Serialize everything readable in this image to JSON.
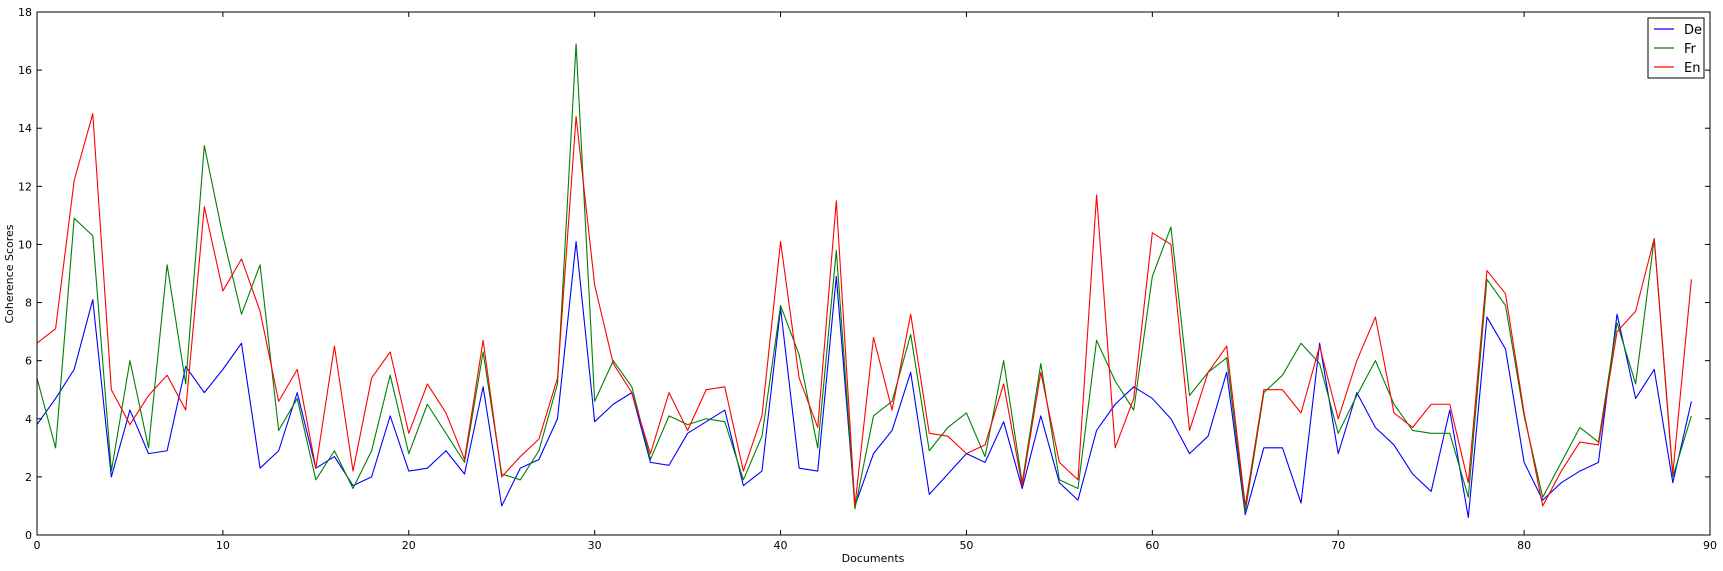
{
  "chart_data": {
    "type": "line",
    "title": "",
    "xlabel": "Documents",
    "ylabel": "Coherence Scores",
    "xlim": [
      0,
      90
    ],
    "ylim": [
      0,
      18
    ],
    "xticks": [
      0,
      10,
      20,
      30,
      40,
      50,
      60,
      70,
      80,
      90
    ],
    "yticks": [
      0,
      2,
      4,
      6,
      8,
      10,
      12,
      14,
      16,
      18
    ],
    "grid": false,
    "legend_position": "top-right",
    "x": [
      0,
      1,
      2,
      3,
      4,
      5,
      6,
      7,
      8,
      9,
      10,
      11,
      12,
      13,
      14,
      15,
      16,
      17,
      18,
      19,
      20,
      21,
      22,
      23,
      24,
      25,
      26,
      27,
      28,
      29,
      30,
      31,
      32,
      33,
      34,
      35,
      36,
      37,
      38,
      39,
      40,
      41,
      42,
      43,
      44,
      45,
      46,
      47,
      48,
      49,
      50,
      51,
      52,
      53,
      54,
      55,
      56,
      57,
      58,
      59,
      60,
      61,
      62,
      63,
      64,
      65,
      66,
      67,
      68,
      69,
      70,
      71,
      72,
      73,
      74,
      75,
      76,
      77,
      78,
      79,
      80,
      81,
      82,
      83,
      84,
      85,
      86,
      87,
      88,
      89
    ],
    "series": [
      {
        "name": "De",
        "color": "#0000ff",
        "values": [
          3.8,
          4.7,
          5.7,
          8.1,
          2.0,
          4.3,
          2.8,
          2.9,
          5.8,
          4.9,
          5.7,
          6.6,
          2.3,
          2.9,
          4.9,
          2.3,
          2.7,
          1.7,
          2.0,
          4.1,
          2.2,
          2.3,
          2.9,
          2.1,
          5.1,
          1.0,
          2.3,
          2.6,
          4.0,
          10.1,
          3.9,
          4.5,
          4.9,
          2.5,
          2.4,
          3.5,
          3.9,
          4.3,
          1.7,
          2.2,
          7.8,
          2.3,
          2.2,
          8.9,
          1.0,
          2.8,
          3.6,
          5.6,
          1.4,
          2.1,
          2.8,
          2.5,
          3.9,
          1.6,
          4.1,
          1.8,
          1.2,
          3.6,
          4.5,
          5.1,
          4.7,
          4.0,
          2.8,
          3.4,
          5.6,
          0.7,
          3.0,
          3.0,
          1.1,
          6.6,
          2.8,
          4.9,
          3.7,
          3.1,
          2.1,
          1.5,
          4.3,
          0.6,
          7.5,
          6.4,
          2.5,
          1.2,
          1.8,
          2.2,
          2.5,
          7.6,
          4.7,
          5.7,
          1.8,
          4.6
        ]
      },
      {
        "name": "Fr",
        "color": "#008000",
        "values": [
          5.4,
          3.0,
          10.9,
          10.3,
          2.2,
          6.0,
          3.0,
          9.3,
          5.2,
          13.4,
          10.3,
          7.6,
          9.3,
          3.6,
          4.7,
          1.9,
          2.9,
          1.6,
          2.9,
          5.5,
          2.8,
          4.5,
          3.5,
          2.5,
          6.3,
          2.1,
          1.9,
          2.9,
          5.2,
          16.9,
          4.6,
          6.0,
          5.1,
          2.6,
          4.1,
          3.8,
          4.0,
          3.9,
          1.9,
          3.4,
          7.9,
          6.2,
          3.0,
          9.8,
          0.9,
          4.1,
          4.6,
          6.9,
          2.9,
          3.7,
          4.2,
          2.7,
          6.0,
          1.8,
          5.9,
          1.9,
          1.6,
          6.7,
          5.3,
          4.3,
          8.9,
          10.6,
          4.8,
          5.6,
          6.1,
          0.8,
          4.9,
          5.5,
          6.6,
          5.9,
          3.5,
          4.8,
          6.0,
          4.5,
          3.6,
          3.5,
          3.5,
          1.3,
          8.8,
          7.9,
          4.1,
          1.3,
          2.5,
          3.7,
          3.2,
          7.3,
          5.2,
          10.2,
          2.0,
          4.1
        ]
      },
      {
        "name": "En",
        "color": "#ff0000",
        "values": [
          6.6,
          7.1,
          12.2,
          14.5,
          5.0,
          3.8,
          4.8,
          5.5,
          4.3,
          11.3,
          8.4,
          9.5,
          7.7,
          4.6,
          5.7,
          2.3,
          6.5,
          2.2,
          5.4,
          6.3,
          3.5,
          5.2,
          4.2,
          2.6,
          6.7,
          2.0,
          2.7,
          3.3,
          5.4,
          14.4,
          8.6,
          5.9,
          4.9,
          2.8,
          4.9,
          3.6,
          5.0,
          5.1,
          2.2,
          4.1,
          10.1,
          5.4,
          3.7,
          11.5,
          1.0,
          6.8,
          4.3,
          7.6,
          3.5,
          3.4,
          2.8,
          3.1,
          5.2,
          1.7,
          5.6,
          2.5,
          1.9,
          11.7,
          3.0,
          4.7,
          10.4,
          10.0,
          3.6,
          5.6,
          6.5,
          1.0,
          5.0,
          5.0,
          4.2,
          6.5,
          4.0,
          6.0,
          7.5,
          4.2,
          3.7,
          4.5,
          4.5,
          1.8,
          9.1,
          8.3,
          4.2,
          1.0,
          2.2,
          3.2,
          3.1,
          7.0,
          7.7,
          10.2,
          2.1,
          8.8
        ]
      }
    ]
  }
}
